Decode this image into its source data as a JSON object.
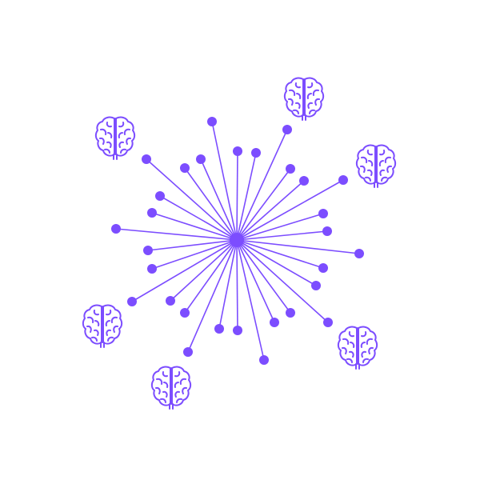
{
  "colors": {
    "accent": "#7c4dff",
    "background": "#ffffff"
  },
  "icons": {
    "brain": "brain-icon",
    "count": 6
  },
  "rays": {
    "count": 30
  }
}
